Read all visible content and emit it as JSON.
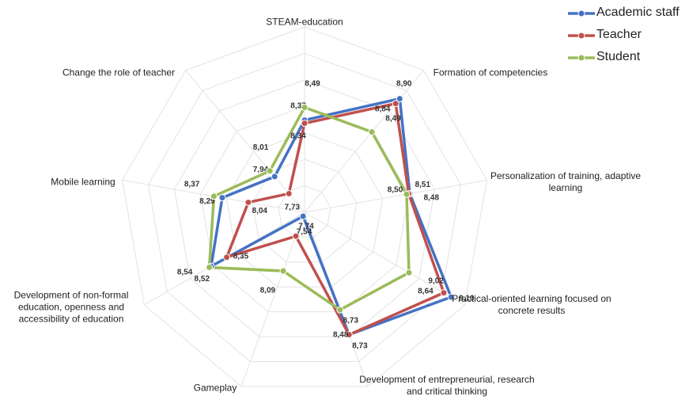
{
  "chart_data": {
    "type": "radar",
    "categories": [
      "STEAM-education",
      "Formation of competencies",
      "Personalization of training, adaptive learning",
      "Practical-oriented learning focused on concrete results",
      "Development of entrepreneurial, research and critical thinking",
      "Gameplay",
      "Development of non-formal education, openness and accessibility of education",
      "Mobile learning",
      "Change the role of teacher"
    ],
    "series": [
      {
        "name": "Academic staff",
        "color": "#4472c4",
        "values": [
          8.37,
          8.9,
          8.51,
          9.1,
          8.73,
          7.54,
          8.52,
          8.29,
          7.94
        ],
        "value_labels": [
          "8,37",
          "8,90",
          "8,51",
          "9,10",
          "8,73",
          "7,54",
          "8,52",
          "8,29",
          "7,94"
        ]
      },
      {
        "name": "Teacher",
        "color": "#c0504d",
        "values": [
          8.34,
          8.84,
          8.5,
          9.02,
          8.73,
          7.74,
          8.35,
          8.04,
          7.73
        ],
        "value_labels": [
          "8,34",
          "8,84",
          "8,50",
          "9,02",
          "8,73",
          "7,74",
          "8,35",
          "8,04",
          "7,73"
        ]
      },
      {
        "name": "Student",
        "color": "#9bbb59",
        "values": [
          8.49,
          8.49,
          8.48,
          8.64,
          8.48,
          8.09,
          8.54,
          8.37,
          8.01
        ],
        "value_labels": [
          "8,49",
          "8,49",
          "8,48",
          "8,64",
          "8,48",
          "8,09",
          "8,54",
          "8,37",
          "8,01"
        ]
      }
    ],
    "rlim": [
      7.5,
      9.25
    ],
    "rticks": [
      7.5,
      7.75,
      8,
      8.25,
      8.5,
      8.75,
      9,
      9.25
    ],
    "grid": true,
    "legend": "top-right"
  }
}
